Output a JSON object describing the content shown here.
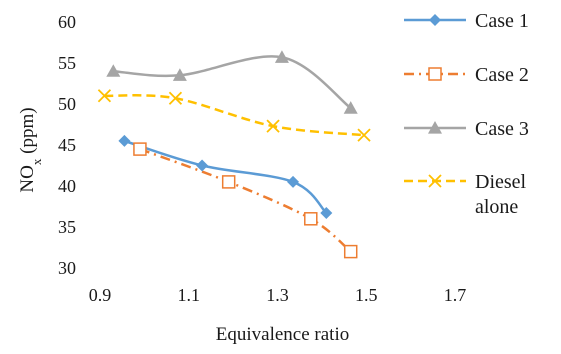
{
  "chart_data": {
    "type": "line",
    "xlabel": "Equivalence ratio",
    "ylabel_main": "NO",
    "ylabel_sub": "x",
    "ylabel_unit": " (ppm)",
    "xlim": [
      0.9,
      1.7
    ],
    "ylim": [
      30,
      60
    ],
    "xticks": [
      "0.9",
      "1.1",
      "1.3",
      "1.5",
      "1.7"
    ],
    "yticks": [
      "30",
      "35",
      "40",
      "45",
      "50",
      "55",
      "60"
    ],
    "grid": false,
    "legend_position": "right",
    "series": [
      {
        "name": "Case 1",
        "color": "#5b9bd5",
        "dash": "solid",
        "marker": "diamond",
        "x": [
          0.955,
          1.13,
          1.335,
          1.41
        ],
        "y": [
          45.5,
          42.5,
          40.5,
          36.7
        ]
      },
      {
        "name": "Case 2",
        "color": "#ed7d31",
        "dash": "dashdot",
        "marker": "open-square",
        "x": [
          0.99,
          1.19,
          1.375,
          1.465
        ],
        "y": [
          44.5,
          40.5,
          36.0,
          32.0
        ]
      },
      {
        "name": "Case 3",
        "color": "#a5a5a5",
        "dash": "solid",
        "marker": "triangle",
        "x": [
          0.93,
          1.08,
          1.31,
          1.465
        ],
        "y": [
          54.0,
          53.5,
          55.7,
          49.5
        ]
      },
      {
        "name": "Diesel alone",
        "name_lines": [
          "Diesel",
          "alone"
        ],
        "color": "#ffc000",
        "dash": "dashed",
        "marker": "x",
        "x": [
          0.91,
          1.07,
          1.29,
          1.495
        ],
        "y": [
          51.0,
          50.7,
          47.3,
          46.2
        ]
      }
    ]
  }
}
